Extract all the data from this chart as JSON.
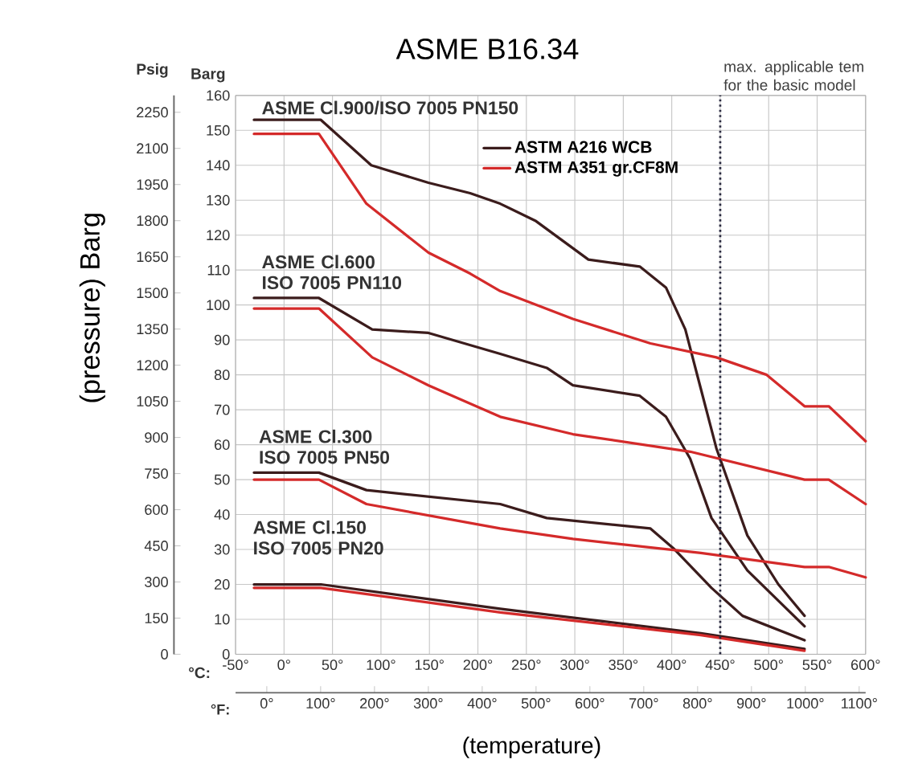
{
  "chart_data": {
    "type": "line",
    "title": "ASME B16.34",
    "xlabel": "(temperature)",
    "ylabel": "Barg",
    "y2label": "Psig",
    "x2label": "°F:",
    "xlim": [
      -50,
      600
    ],
    "xticks": [
      {
        "value": -50,
        "label": "-50°"
      },
      {
        "value": 0,
        "label": "0°"
      },
      {
        "value": 50,
        "label": "50°"
      },
      {
        "value": 100,
        "label": "100°"
      },
      {
        "value": 150,
        "label": "150°"
      },
      {
        "value": 200,
        "label": "200°"
      },
      {
        "value": 250,
        "label": "250°"
      },
      {
        "value": 300,
        "label": "300°"
      },
      {
        "value": 350,
        "label": "350°"
      },
      {
        "value": 400,
        "label": "400°"
      },
      {
        "value": 450,
        "label": "450°"
      },
      {
        "value": 500,
        "label": "500°"
      },
      {
        "value": 550,
        "label": "550°"
      },
      {
        "value": 600,
        "label": "600°"
      }
    ],
    "x2lim": [
      -58,
      1112
    ],
    "x2ticks": [
      {
        "value": 0,
        "label": "0°"
      },
      {
        "value": 100,
        "label": "100°"
      },
      {
        "value": 200,
        "label": "200°"
      },
      {
        "value": 300,
        "label": "300°"
      },
      {
        "value": 400,
        "label": "400°"
      },
      {
        "value": 500,
        "label": "500°"
      },
      {
        "value": 600,
        "label": "600°"
      },
      {
        "value": 700,
        "label": "700°"
      },
      {
        "value": 800,
        "label": "800°"
      },
      {
        "value": 900,
        "label": "900°"
      },
      {
        "value": 1000,
        "label": "1000°"
      },
      {
        "value": 1100,
        "label": "1100°"
      }
    ],
    "ylim": [
      0,
      160
    ],
    "yticks": [
      0,
      10,
      20,
      30,
      40,
      50,
      60,
      70,
      80,
      90,
      100,
      110,
      120,
      130,
      140,
      150,
      160
    ],
    "y2lim": [
      0,
      2320
    ],
    "y2ticks": [
      0,
      150,
      300,
      450,
      600,
      750,
      900,
      1050,
      1200,
      1350,
      1500,
      1650,
      1800,
      1950,
      2100,
      2250
    ],
    "grid": true,
    "legend": "top",
    "series": [
      {
        "name": "ASTM A216 WCB",
        "color": "#3b1c1c",
        "x": [
          -31,
          38,
          90,
          149,
          192,
          223,
          260,
          314,
          367,
          394,
          414,
          430,
          446,
          478,
          510,
          537
        ],
        "values": [
          153,
          153,
          140,
          135,
          132,
          129,
          124,
          113,
          111,
          105,
          93,
          76,
          59,
          34,
          20,
          11
        ]
      },
      {
        "name": "ASTM A351 gr.CF8M",
        "color": "#d42a2a",
        "x": [
          -31,
          36,
          85,
          149,
          192,
          223,
          298,
          378,
          446,
          498,
          537,
          562,
          600
        ],
        "values": [
          149,
          149,
          129,
          115,
          109,
          104,
          96,
          89,
          85,
          80,
          71,
          71,
          61
        ]
      },
      {
        "color": "#3b1c1c",
        "x": [
          -31,
          36,
          91,
          149,
          223,
          271,
          298,
          367,
          394,
          419,
          441,
          478,
          537
        ],
        "values": [
          102,
          102,
          93,
          92,
          86,
          82,
          77,
          74,
          68,
          56,
          39,
          24,
          8
        ]
      },
      {
        "color": "#d42a2a",
        "x": [
          -31,
          36,
          91,
          149,
          223,
          298,
          419,
          537,
          562,
          600
        ],
        "values": [
          99,
          99,
          85,
          77,
          68,
          63,
          58,
          50,
          50,
          43
        ]
      },
      {
        "color": "#3b1c1c",
        "x": [
          -31,
          36,
          85,
          223,
          271,
          378,
          403,
          441,
          473,
          537
        ],
        "values": [
          52,
          52,
          47,
          43,
          39,
          36,
          30,
          19,
          11,
          4
        ]
      },
      {
        "color": "#d42a2a",
        "x": [
          -31,
          36,
          85,
          223,
          298,
          430,
          537,
          562,
          600
        ],
        "values": [
          50,
          50,
          43,
          36,
          33,
          29,
          25,
          25,
          22
        ]
      },
      {
        "color": "#3b1c1c",
        "x": [
          -31,
          38,
          223,
          430,
          537
        ],
        "values": [
          20,
          20,
          13,
          6,
          1.5
        ]
      },
      {
        "color": "#d42a2a",
        "x": [
          -31,
          38,
          223,
          430,
          537
        ],
        "values": [
          19,
          19,
          12,
          5.5,
          1
        ]
      }
    ],
    "ref_lines": [
      {
        "axis": "x",
        "value": 450,
        "label": "max. applicable tem for the basic model",
        "color": "#2a2a40",
        "line_style": "dotted"
      }
    ],
    "annotations": [
      "ASME Cl.900/ISO 7005 PN150",
      "ASME Cl.600 ISO 7005 PN110",
      "ASME Cl.300 ISO 7005 PN50",
      "ASME Cl.150 ISO 7005 PN20",
      "(pressure) Barg",
      "°C:"
    ]
  }
}
